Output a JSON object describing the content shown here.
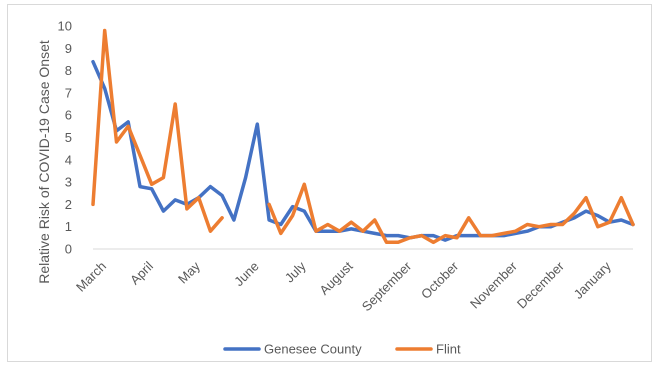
{
  "chart_data": {
    "type": "line",
    "title": "",
    "xlabel": "",
    "ylabel": "Relative Risk of COVID-19 Case Onset",
    "ylim": [
      0,
      10
    ],
    "yticks": [
      0,
      1,
      2,
      3,
      4,
      5,
      6,
      7,
      8,
      9,
      10
    ],
    "grid": false,
    "legend_position": "bottom",
    "month_labels": [
      {
        "label": "March",
        "x": 0
      },
      {
        "label": "April",
        "x": 4
      },
      {
        "label": "May",
        "x": 8
      },
      {
        "label": "June",
        "x": 13
      },
      {
        "label": "July",
        "x": 17
      },
      {
        "label": "August",
        "x": 21
      },
      {
        "label": "September",
        "x": 26
      },
      {
        "label": "October",
        "x": 30
      },
      {
        "label": "November",
        "x": 35
      },
      {
        "label": "December",
        "x": 39
      },
      {
        "label": "January",
        "x": 43
      }
    ],
    "x_range": [
      0,
      46
    ],
    "series": [
      {
        "name": "Genesee County",
        "color": "#4472C4",
        "points": [
          [
            0,
            8.4
          ],
          [
            1,
            7.2
          ],
          [
            2,
            5.3
          ],
          [
            3,
            5.7
          ],
          [
            4,
            2.8
          ],
          [
            5,
            2.7
          ],
          [
            6,
            1.7
          ],
          [
            7,
            2.2
          ],
          [
            8,
            2.0
          ],
          [
            9,
            2.3
          ],
          [
            10,
            2.8
          ],
          [
            11,
            2.4
          ],
          [
            12,
            1.3
          ],
          [
            13,
            3.2
          ],
          [
            14,
            5.6
          ],
          [
            15,
            1.3
          ],
          [
            16,
            1.1
          ],
          [
            17,
            1.9
          ],
          [
            18,
            1.7
          ],
          [
            19,
            0.8
          ],
          [
            20,
            0.8
          ],
          [
            21,
            0.8
          ],
          [
            22,
            0.9
          ],
          [
            23,
            0.8
          ],
          [
            24,
            0.7
          ],
          [
            25,
            0.6
          ],
          [
            26,
            0.6
          ],
          [
            27,
            0.5
          ],
          [
            28,
            0.6
          ],
          [
            29,
            0.6
          ],
          [
            30,
            0.4
          ],
          [
            31,
            0.6
          ],
          [
            32,
            0.6
          ],
          [
            33,
            0.6
          ],
          [
            34,
            0.6
          ],
          [
            35,
            0.6
          ],
          [
            36,
            0.7
          ],
          [
            37,
            0.8
          ],
          [
            38,
            1.0
          ],
          [
            39,
            1.0
          ],
          [
            40,
            1.2
          ],
          [
            41,
            1.4
          ],
          [
            42,
            1.7
          ],
          [
            43,
            1.5
          ],
          [
            44,
            1.2
          ],
          [
            45,
            1.3
          ],
          [
            46,
            1.1
          ]
        ]
      },
      {
        "name": "Flint",
        "color": "#ED7D31",
        "points": [
          [
            0,
            2.0
          ],
          [
            1,
            9.8
          ],
          [
            2,
            4.8
          ],
          [
            3,
            5.5
          ],
          [
            4,
            4.2
          ],
          [
            5,
            2.9
          ],
          [
            6,
            3.2
          ],
          [
            7,
            6.5
          ],
          [
            8,
            1.8
          ],
          [
            9,
            2.3
          ],
          [
            10,
            0.8
          ],
          [
            11,
            1.4
          ],
          null,
          null,
          null,
          [
            15,
            2.0
          ],
          [
            16,
            0.7
          ],
          [
            17,
            1.5
          ],
          [
            18,
            2.9
          ],
          [
            19,
            0.8
          ],
          [
            20,
            1.1
          ],
          [
            21,
            0.8
          ],
          [
            22,
            1.2
          ],
          [
            23,
            0.8
          ],
          [
            24,
            1.3
          ],
          [
            25,
            0.3
          ],
          [
            26,
            0.3
          ],
          [
            27,
            0.5
          ],
          [
            28,
            0.6
          ],
          [
            29,
            0.3
          ],
          [
            30,
            0.6
          ],
          [
            31,
            0.5
          ],
          [
            32,
            1.4
          ],
          [
            33,
            0.6
          ],
          [
            34,
            0.6
          ],
          [
            35,
            0.7
          ],
          [
            36,
            0.8
          ],
          [
            37,
            1.1
          ],
          [
            38,
            1.0
          ],
          [
            39,
            1.1
          ],
          [
            40,
            1.1
          ],
          [
            41,
            1.6
          ],
          [
            42,
            2.3
          ],
          [
            43,
            1.0
          ],
          [
            44,
            1.2
          ],
          [
            45,
            2.3
          ],
          [
            46,
            1.1
          ]
        ]
      }
    ]
  }
}
